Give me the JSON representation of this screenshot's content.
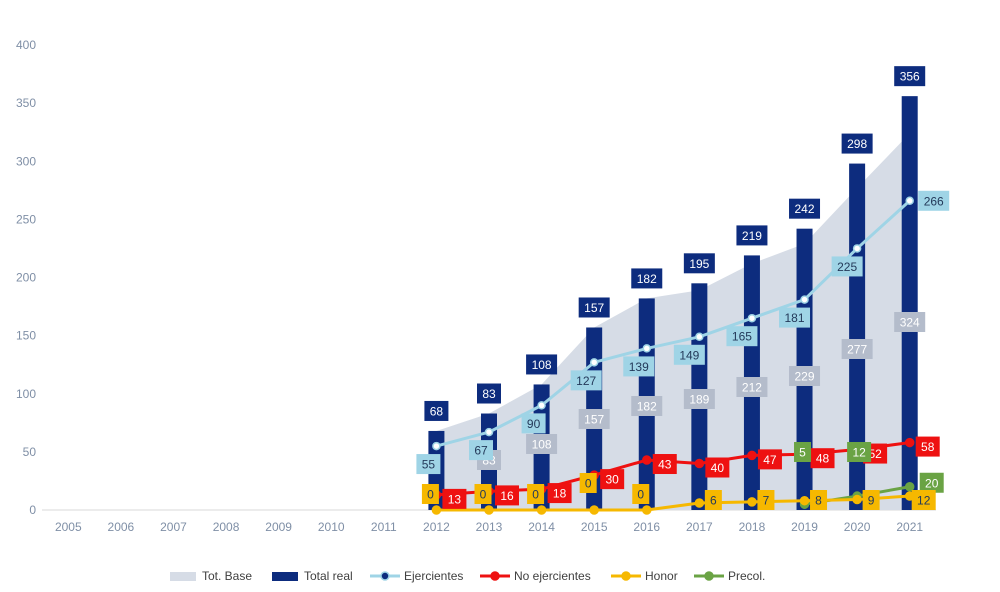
{
  "chart_data": {
    "type": "bar",
    "title": "",
    "xlabel": "",
    "ylabel": "",
    "ylim": [
      0,
      400
    ],
    "yticks": [
      0,
      50,
      100,
      150,
      200,
      250,
      300,
      350,
      400
    ],
    "categories": [
      "2005",
      "2006",
      "2007",
      "2008",
      "2009",
      "2010",
      "2011",
      "2012",
      "2013",
      "2014",
      "2015",
      "2016",
      "2017",
      "2018",
      "2019",
      "2020",
      "2021"
    ],
    "grid": false,
    "legend_position": "bottom",
    "series": [
      {
        "name": "Tot. Base",
        "kind": "area",
        "color": "#d6dce6",
        "label_bg": "#b4bccb",
        "values": [
          null,
          null,
          null,
          null,
          null,
          null,
          null,
          68,
          83,
          108,
          157,
          182,
          189,
          212,
          229,
          277,
          324
        ]
      },
      {
        "name": "Total real",
        "kind": "bar",
        "color": "#0d2c7e",
        "label_bg": "#0d2c7e",
        "values": [
          null,
          null,
          null,
          null,
          null,
          null,
          null,
          68,
          83,
          108,
          157,
          182,
          195,
          219,
          242,
          298,
          356
        ]
      },
      {
        "name": "Ejercientes",
        "kind": "line",
        "color": "#9fd4e6",
        "label_bg": "#9fd4e6",
        "values": [
          null,
          null,
          null,
          null,
          null,
          null,
          null,
          55,
          67,
          90,
          127,
          139,
          149,
          165,
          181,
          225,
          266
        ]
      },
      {
        "name": "No ejercientes",
        "kind": "line",
        "color": "#ee1111",
        "label_bg": "#ee1111",
        "values": [
          null,
          null,
          null,
          null,
          null,
          null,
          null,
          13,
          16,
          18,
          30,
          43,
          40,
          47,
          48,
          52,
          58
        ]
      },
      {
        "name": "Honor",
        "kind": "line",
        "color": "#f6b800",
        "label_bg": "#f6b800",
        "values": [
          null,
          null,
          null,
          null,
          null,
          null,
          null,
          0,
          0,
          0,
          0,
          0,
          6,
          7,
          8,
          9,
          12
        ]
      },
      {
        "name": "Precol.",
        "kind": "line",
        "color": "#6aa344",
        "label_bg": "#6aa344",
        "values": [
          null,
          null,
          null,
          null,
          null,
          null,
          null,
          null,
          null,
          null,
          null,
          null,
          null,
          null,
          5,
          12,
          20
        ]
      }
    ]
  }
}
